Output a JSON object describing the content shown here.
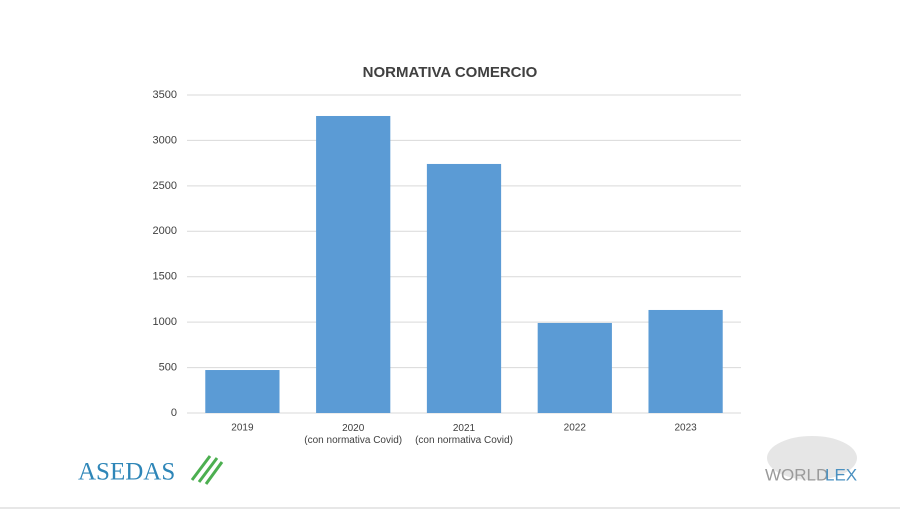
{
  "chart_data": {
    "type": "bar",
    "title": "NORMATIVA COMERCIO",
    "categories": [
      "2019",
      "2020\n(con normativa Covid)",
      "2021\n(con normativa Covid)",
      "2022",
      "2023"
    ],
    "values": [
      473,
      3269,
      2741,
      991,
      1134
    ],
    "color": "#5b9bd5",
    "ylim": [
      0,
      3500
    ],
    "yticks": [
      0,
      500,
      1000,
      1500,
      2000,
      2500,
      3000,
      3500
    ],
    "grid": true
  },
  "logos": {
    "left": "ASEDAS",
    "right_first": "WORLD",
    "right_second": "LEX"
  }
}
